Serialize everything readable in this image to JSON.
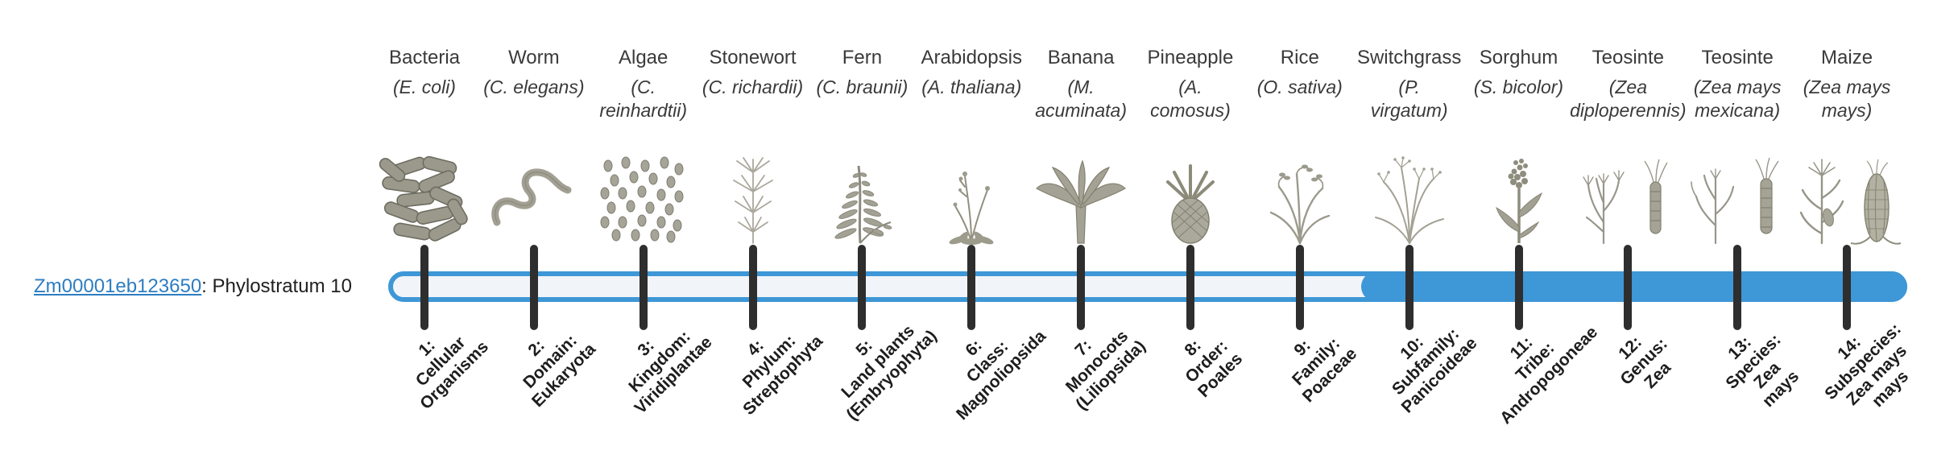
{
  "gene": {
    "id": "Zm00001eb123650",
    "suffix": ": Phylostratum 10"
  },
  "colors": {
    "accent_blue": "#3e97d6",
    "tick_black": "#2e2e2e",
    "link_blue": "#2d7dc1",
    "track_background": "#f1f4f8"
  },
  "timeline": {
    "highlight_start_stratum": 10,
    "total_strata": 14
  },
  "organisms": [
    {
      "common_name": "Bacteria",
      "scientific_name_lines": [
        "(E. coli)"
      ],
      "icon": "bacteria-icon",
      "stratum_label_lines": [
        "1:",
        "Cellular",
        "Organisms"
      ]
    },
    {
      "common_name": "Worm",
      "scientific_name_lines": [
        "(C. elegans)"
      ],
      "icon": "worm-icon",
      "stratum_label_lines": [
        "2:",
        "Domain:",
        "Eukaryota"
      ]
    },
    {
      "common_name": "Algae",
      "scientific_name_lines": [
        "(C.",
        "reinhardtii)"
      ],
      "icon": "algae-icon",
      "stratum_label_lines": [
        "3:",
        "Kingdom:",
        "Viridiplantae"
      ]
    },
    {
      "common_name": "Stonewort",
      "scientific_name_lines": [
        "(C. richardii)"
      ],
      "icon": "stonewort-icon",
      "stratum_label_lines": [
        "4:",
        "Phylum:",
        "Streptophyta"
      ]
    },
    {
      "common_name": "Fern",
      "scientific_name_lines": [
        "(C. braunii)"
      ],
      "icon": "fern-icon",
      "stratum_label_lines": [
        "5:",
        "Land plants",
        "(Embryophyta)"
      ]
    },
    {
      "common_name": "Arabidopsis",
      "scientific_name_lines": [
        "(A. thaliana)"
      ],
      "icon": "arabidopsis-icon",
      "stratum_label_lines": [
        "6:",
        "Class:",
        "Magnoliopsida"
      ]
    },
    {
      "common_name": "Banana",
      "scientific_name_lines": [
        "(M.",
        "acuminata)"
      ],
      "icon": "banana-icon",
      "stratum_label_lines": [
        "7:",
        "Monocots",
        "(Liliopsida)"
      ]
    },
    {
      "common_name": "Pineapple",
      "scientific_name_lines": [
        "(A.",
        "comosus)"
      ],
      "icon": "pineapple-icon",
      "stratum_label_lines": [
        "8:",
        "Order:",
        "Poales"
      ]
    },
    {
      "common_name": "Rice",
      "scientific_name_lines": [
        "(O. sativa)"
      ],
      "icon": "rice-icon",
      "stratum_label_lines": [
        "9:",
        "Family:",
        "Poaceae"
      ]
    },
    {
      "common_name": "Switchgrass",
      "scientific_name_lines": [
        "(P.",
        "virgatum)"
      ],
      "icon": "switchgrass-icon",
      "stratum_label_lines": [
        "10:",
        "Subfamily:",
        "Panicoideae"
      ]
    },
    {
      "common_name": "Sorghum",
      "scientific_name_lines": [
        "(S. bicolor)"
      ],
      "icon": "sorghum-icon",
      "stratum_label_lines": [
        "11:",
        "Tribe:",
        "Andropogoneae"
      ]
    },
    {
      "common_name": "Teosinte",
      "scientific_name_lines": [
        "(Zea",
        "diploperennis)"
      ],
      "icon": "teosinte-diploperennis-icon",
      "stratum_label_lines": [
        "12:",
        "Genus:",
        "Zea"
      ]
    },
    {
      "common_name": "Teosinte",
      "scientific_name_lines": [
        "(Zea mays",
        "mexicana)"
      ],
      "icon": "teosinte-mexicana-icon",
      "stratum_label_lines": [
        "13:",
        "Species:",
        "Zea",
        "mays"
      ]
    },
    {
      "common_name": "Maize",
      "scientific_name_lines": [
        "(Zea mays",
        "mays)"
      ],
      "icon": "maize-icon",
      "stratum_label_lines": [
        "14:",
        "Subspecies:",
        "Zea mays",
        "mays"
      ]
    }
  ]
}
